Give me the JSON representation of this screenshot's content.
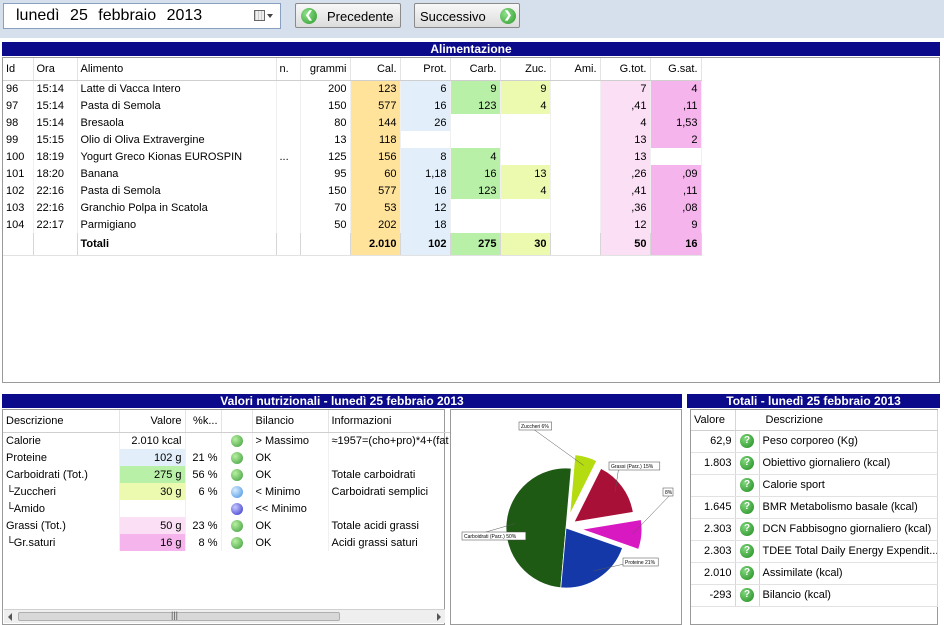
{
  "toolbar": {
    "date_weekday": "lunedì",
    "date_day": "25",
    "date_month": "febbraio",
    "date_year": "2013",
    "prev_label": "Precedente",
    "next_label": "Successivo"
  },
  "food_section": {
    "title": "Alimentazione",
    "columns": [
      "Id",
      "Ora",
      "Alimento",
      "n.",
      "grammi",
      "Cal.",
      "Prot.",
      "Carb.",
      "Zuc.",
      "Ami.",
      "G.tot.",
      "G.sat."
    ],
    "rows": [
      [
        "96",
        "15:14",
        "Latte di Vacca Intero",
        "",
        "200",
        "123",
        "6",
        "9",
        "9",
        "",
        "7",
        "4"
      ],
      [
        "97",
        "15:14",
        "Pasta di Semola",
        "",
        "150",
        "577",
        "16",
        "123",
        "4",
        "",
        ",41",
        ",11"
      ],
      [
        "98",
        "15:14",
        "Bresaola",
        "",
        "80",
        "144",
        "26",
        "",
        "",
        "",
        "4",
        "1,53"
      ],
      [
        "99",
        "15:15",
        "Olio di Oliva Extravergine",
        "",
        "13",
        "118",
        "",
        "",
        "",
        "",
        "13",
        "2"
      ],
      [
        "100",
        "18:19",
        "Yogurt Greco Kionas EUROSPIN",
        "...",
        "125",
        "156",
        "8",
        "4",
        "",
        "",
        "13",
        ""
      ],
      [
        "101",
        "18:20",
        "Banana",
        "",
        "95",
        "60",
        "1,18",
        "16",
        "13",
        "",
        ",26",
        ",09"
      ],
      [
        "102",
        "22:16",
        "Pasta di Semola",
        "",
        "150",
        "577",
        "16",
        "123",
        "4",
        "",
        ",41",
        ",11"
      ],
      [
        "103",
        "22:16",
        "Granchio Polpa in Scatola",
        "",
        "70",
        "53",
        "12",
        "",
        "",
        "",
        ",36",
        ",08"
      ],
      [
        "104",
        "22:17",
        "Parmigiano",
        "",
        "50",
        "202",
        "18",
        "",
        "",
        "",
        "12",
        "9"
      ]
    ],
    "totals": [
      "",
      "",
      "Totali",
      "",
      "",
      "2.010",
      "102",
      "275",
      "30",
      "",
      "50",
      "16"
    ]
  },
  "nutrition_section": {
    "title": "Valori nutrizionali - lunedì 25 febbraio 2013",
    "columns": [
      "Descrizione",
      "Valore",
      "%k...",
      "",
      "Bilancio",
      "Informazioni"
    ],
    "rows": [
      {
        "desc": "Calorie",
        "value": "2.010 kcal",
        "pct": "",
        "status": "green",
        "bilancio": "> Massimo",
        "info": "≈1957=(cho+pro)*4+(fat"
      },
      {
        "desc": "Proteine",
        "value": "102 g",
        "pct": "21 %",
        "status": "green",
        "bilancio": "OK",
        "info": ""
      },
      {
        "desc": "Carboidrati (Tot.)",
        "value": "275 g",
        "pct": "56 %",
        "status": "green",
        "bilancio": "OK",
        "info": "Totale carboidrati"
      },
      {
        "desc": "└Zuccheri",
        "value": "30 g",
        "pct": "6 %",
        "status": "lblue",
        "bilancio": "< Minimo",
        "info": "Carboidrati semplici"
      },
      {
        "desc": "└Amido",
        "value": "",
        "pct": "",
        "status": "blue",
        "bilancio": "<< Minimo",
        "info": ""
      },
      {
        "desc": "Grassi (Tot.)",
        "value": "50 g",
        "pct": "23 %",
        "status": "green",
        "bilancio": "OK",
        "info": "Totale acidi grassi"
      },
      {
        "desc": "└Gr.saturi",
        "value": "16 g",
        "pct": "8 %",
        "status": "green",
        "bilancio": "OK",
        "info": "Acidi grassi saturi"
      }
    ],
    "scroll_thumb_label": "|||"
  },
  "chart_data": {
    "type": "pie",
    "slices": [
      {
        "label": "Carboidrati (Parz.) 50%",
        "value": 50,
        "color": "#1e5a14"
      },
      {
        "label": "Zuccheri 6%",
        "value": 6,
        "color": "#b4dc10"
      },
      {
        "label": "Grassi (Parz.) 15%",
        "value": 15,
        "color": "#a81038"
      },
      {
        "label": "8%",
        "value": 8,
        "color": "#d818c0"
      },
      {
        "label": "Proteine 21%",
        "value": 21,
        "color": "#1438a8"
      }
    ]
  },
  "totals_section": {
    "title": "Totali - lunedì 25 febbraio 2013",
    "columns": [
      "Valore",
      "Descrizione"
    ],
    "rows": [
      {
        "value": "62,9",
        "desc": "Peso corporeo (Kg)"
      },
      {
        "value": "1.803",
        "desc": "Obiettivo giornaliero (kcal)"
      },
      {
        "value": "",
        "desc": "Calorie sport"
      },
      {
        "value": "1.645",
        "desc": "BMR Metabolismo basale (kcal)"
      },
      {
        "value": "2.303",
        "desc": "DCN Fabbisogno giornaliero (kcal)"
      },
      {
        "value": "2.303",
        "desc": "TDEE Total Daily Energy Expendit..."
      },
      {
        "value": "2.010",
        "desc": "Assimilate (kcal)"
      },
      {
        "value": "-293",
        "desc": "Bilancio (kcal)"
      }
    ]
  },
  "colors": {
    "section_header": "#0a0a8a",
    "toolbar_bg": "#d6e0ed",
    "cal": "#ffe39a",
    "prot": "#e2effa",
    "carb": "#b9f0a8",
    "zuc": "#ecfab0",
    "gtot": "#fbdff5",
    "gsat": "#f5b4ec"
  }
}
